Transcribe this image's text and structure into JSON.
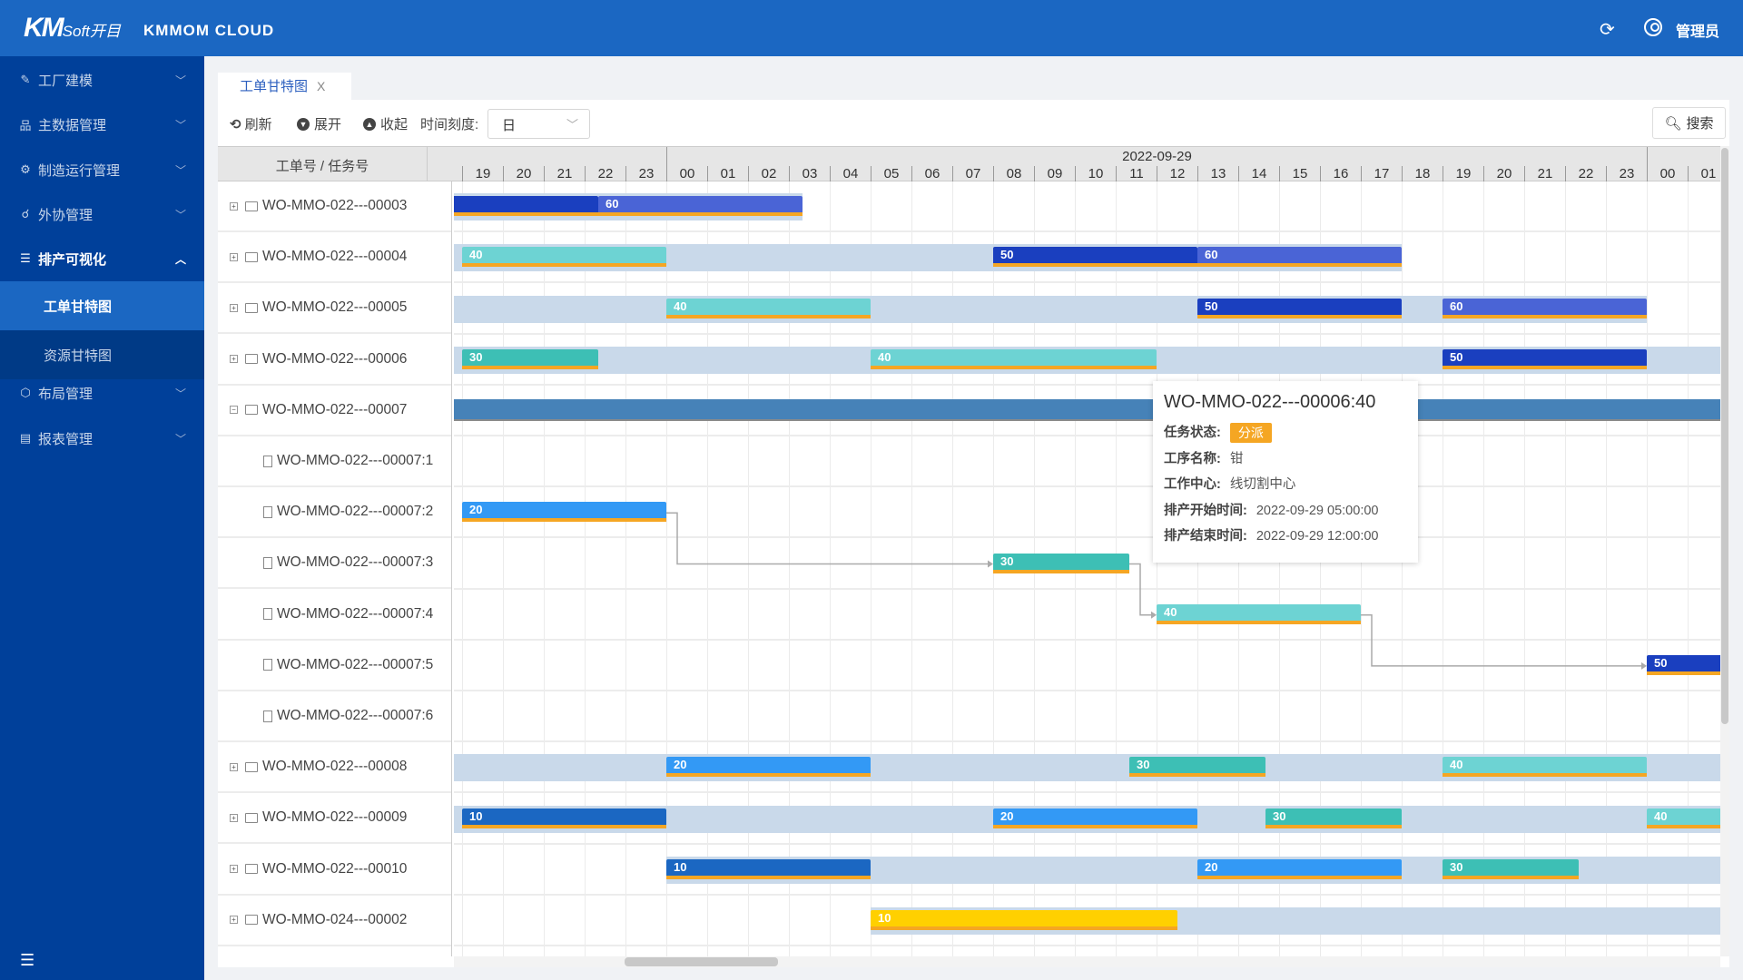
{
  "header": {
    "logo_text": "KM",
    "logo_sub": "Soft开目",
    "app_name": "KMMOM CLOUD",
    "user": "管理员",
    "refresh_icon": "refresh-icon",
    "user_icon": "user-circle-icon"
  },
  "sidebar": {
    "items": [
      {
        "label": "工厂建模",
        "icon": "wrench-icon",
        "open": false
      },
      {
        "label": "主数据管理",
        "icon": "org-chart-icon",
        "open": false
      },
      {
        "label": "制造运行管理",
        "icon": "gear-icon",
        "open": false
      },
      {
        "label": "外协管理",
        "icon": "handshake-icon",
        "open": false
      },
      {
        "label": "排产可视化",
        "icon": "list-icon",
        "open": true,
        "children": [
          {
            "label": "工单甘特图",
            "active": true
          },
          {
            "label": "资源甘特图",
            "active": false
          }
        ]
      },
      {
        "label": "布局管理",
        "icon": "cube-icon",
        "open": false
      },
      {
        "label": "报表管理",
        "icon": "report-icon",
        "open": false
      }
    ]
  },
  "tab": {
    "label": "工单甘特图",
    "close": "X"
  },
  "toolbar": {
    "refresh": "刷新",
    "expand": "展开",
    "collapse": "收起",
    "scale_label": "时间刻度:",
    "scale_value": "日",
    "search": "搜索"
  },
  "gantt": {
    "column_header": "工单号 / 任务号",
    "view_start": "2022-09-28 19:00",
    "date_label": "2022-09-29",
    "hours": [
      "19",
      "20",
      "21",
      "22",
      "23",
      "00",
      "01",
      "02",
      "03",
      "04",
      "05",
      "06",
      "07",
      "08",
      "09",
      "10",
      "11",
      "12",
      "13",
      "14",
      "15",
      "16",
      "17",
      "18",
      "19",
      "20",
      "21",
      "22",
      "23",
      "00",
      "01"
    ],
    "colors": {
      "band": "#c9d9ea",
      "summary": "#4682b8",
      "underline": "#f5a623",
      "10": "#1b67c2",
      "20": "#3399f5",
      "30": "#3dbfb5",
      "40": "#6dd3d3",
      "50": "#1a3fbf",
      "60": "#4a64d6",
      "yellow": "#ffd000"
    },
    "rows": [
      {
        "id": "WO-MMO-022---00003",
        "type": "order",
        "band": [
          "2022-09-28 18:00",
          "2022-09-29 03:20"
        ],
        "bars": [
          {
            "label": "",
            "start": "2022-09-28 18:00",
            "end": "2022-09-28 22:20",
            "color": "#1a3fbf"
          },
          {
            "label": "60",
            "start": "2022-09-28 22:20",
            "end": "2022-09-29 03:20",
            "color": "#4a64d6"
          }
        ]
      },
      {
        "id": "WO-MMO-022---00004",
        "type": "order",
        "band": [
          "2022-09-28 18:00",
          "2022-09-29 18:00"
        ],
        "bars": [
          {
            "label": "40",
            "start": "2022-09-28 19:00",
            "end": "2022-09-29 00:00",
            "color": "#6dd3d3"
          },
          {
            "label": "50",
            "start": "2022-09-29 08:00",
            "end": "2022-09-29 13:00",
            "color": "#1a3fbf"
          },
          {
            "label": "60",
            "start": "2022-09-29 13:00",
            "end": "2022-09-29 18:00",
            "color": "#4a64d6"
          }
        ]
      },
      {
        "id": "WO-MMO-022---00005",
        "type": "order",
        "band": [
          "2022-09-28 18:00",
          "2022-09-30 00:00"
        ],
        "bars": [
          {
            "label": "40",
            "start": "2022-09-29 00:00",
            "end": "2022-09-29 05:00",
            "color": "#6dd3d3"
          },
          {
            "label": "50",
            "start": "2022-09-29 13:00",
            "end": "2022-09-29 18:00",
            "color": "#1a3fbf"
          },
          {
            "label": "60",
            "start": "2022-09-29 19:00",
            "end": "2022-09-30 00:00",
            "color": "#4a64d6"
          }
        ]
      },
      {
        "id": "WO-MMO-022---00006",
        "type": "order",
        "band": [
          "2022-09-28 18:00",
          "2022-09-30 06:00"
        ],
        "bars": [
          {
            "label": "30",
            "start": "2022-09-28 19:00",
            "end": "2022-09-28 22:20",
            "color": "#3dbfb5"
          },
          {
            "label": "40",
            "start": "2022-09-29 05:00",
            "end": "2022-09-29 12:00",
            "color": "#6dd3d3"
          },
          {
            "label": "50",
            "start": "2022-09-29 19:00",
            "end": "2022-09-30 00:00",
            "color": "#1a3fbf"
          }
        ]
      },
      {
        "id": "WO-MMO-022---00007",
        "type": "order",
        "expanded": true,
        "summary": [
          "2022-09-28 18:00",
          "2022-09-30 06:00"
        ],
        "bars": []
      },
      {
        "id": "WO-MMO-022---00007:1",
        "type": "task",
        "bars": []
      },
      {
        "id": "WO-MMO-022---00007:2",
        "type": "task",
        "bars": [
          {
            "label": "20",
            "start": "2022-09-28 19:00",
            "end": "2022-09-29 00:00",
            "color": "#3399f5"
          }
        ]
      },
      {
        "id": "WO-MMO-022---00007:3",
        "type": "task",
        "bars": [
          {
            "label": "30",
            "start": "2022-09-29 08:00",
            "end": "2022-09-29 11:20",
            "color": "#3dbfb5"
          }
        ]
      },
      {
        "id": "WO-MMO-022---00007:4",
        "type": "task",
        "bars": [
          {
            "label": "40",
            "start": "2022-09-29 12:00",
            "end": "2022-09-29 17:00",
            "color": "#6dd3d3"
          }
        ]
      },
      {
        "id": "WO-MMO-022---00007:5",
        "type": "task",
        "bars": [
          {
            "label": "50",
            "start": "2022-09-30 00:00",
            "end": "2022-09-30 05:00",
            "color": "#1a3fbf"
          }
        ]
      },
      {
        "id": "WO-MMO-022---00007:6",
        "type": "task",
        "bars": []
      },
      {
        "id": "WO-MMO-022---00008",
        "type": "order",
        "band": [
          "2022-09-28 18:00",
          "2022-09-30 06:00"
        ],
        "bars": [
          {
            "label": "20",
            "start": "2022-09-29 00:00",
            "end": "2022-09-29 05:00",
            "color": "#3399f5"
          },
          {
            "label": "30",
            "start": "2022-09-29 11:20",
            "end": "2022-09-29 14:40",
            "color": "#3dbfb5"
          },
          {
            "label": "40",
            "start": "2022-09-29 19:00",
            "end": "2022-09-30 00:00",
            "color": "#6dd3d3"
          }
        ]
      },
      {
        "id": "WO-MMO-022---00009",
        "type": "order",
        "band": [
          "2022-09-28 18:00",
          "2022-09-30 06:00"
        ],
        "bars": [
          {
            "label": "10",
            "start": "2022-09-28 19:00",
            "end": "2022-09-29 00:00",
            "color": "#1b67c2"
          },
          {
            "label": "20",
            "start": "2022-09-29 08:00",
            "end": "2022-09-29 13:00",
            "color": "#3399f5"
          },
          {
            "label": "30",
            "start": "2022-09-29 14:40",
            "end": "2022-09-29 18:00",
            "color": "#3dbfb5"
          },
          {
            "label": "40",
            "start": "2022-09-30 00:00",
            "end": "2022-09-30 05:00",
            "color": "#6dd3d3"
          }
        ]
      },
      {
        "id": "WO-MMO-022---00010",
        "type": "order",
        "band": [
          "2022-09-29 00:00",
          "2022-09-30 06:00"
        ],
        "bars": [
          {
            "label": "10",
            "start": "2022-09-29 00:00",
            "end": "2022-09-29 05:00",
            "color": "#1b67c2"
          },
          {
            "label": "20",
            "start": "2022-09-29 13:00",
            "end": "2022-09-29 18:00",
            "color": "#3399f5"
          },
          {
            "label": "30",
            "start": "2022-09-29 19:00",
            "end": "2022-09-29 22:20",
            "color": "#3dbfb5"
          }
        ]
      },
      {
        "id": "WO-MMO-024---00002",
        "type": "order",
        "band": [
          "2022-09-29 05:00",
          "2022-09-30 06:00"
        ],
        "bars": [
          {
            "label": "10",
            "start": "2022-09-29 05:00",
            "end": "2022-09-29 12:30",
            "color": "#ffd000"
          }
        ]
      }
    ],
    "links": [
      {
        "from": "WO-MMO-022---00007:2",
        "to": "WO-MMO-022---00007:3"
      },
      {
        "from": "WO-MMO-022---00007:3",
        "to": "WO-MMO-022---00007:4"
      },
      {
        "from": "WO-MMO-022---00007:4",
        "to": "WO-MMO-022---00007:5"
      }
    ]
  },
  "tooltip": {
    "title": "WO-MMO-022---00006:40",
    "status_label": "任务状态:",
    "status": "分派",
    "status_color": "#f5a623",
    "process_label": "工序名称:",
    "process": "钳",
    "center_label": "工作中心:",
    "center": "线切割中心",
    "start_label": "排产开始时间:",
    "start": "2022-09-29 05:00:00",
    "end_label": "排产结束时间:",
    "end": "2022-09-29 12:00:00"
  }
}
